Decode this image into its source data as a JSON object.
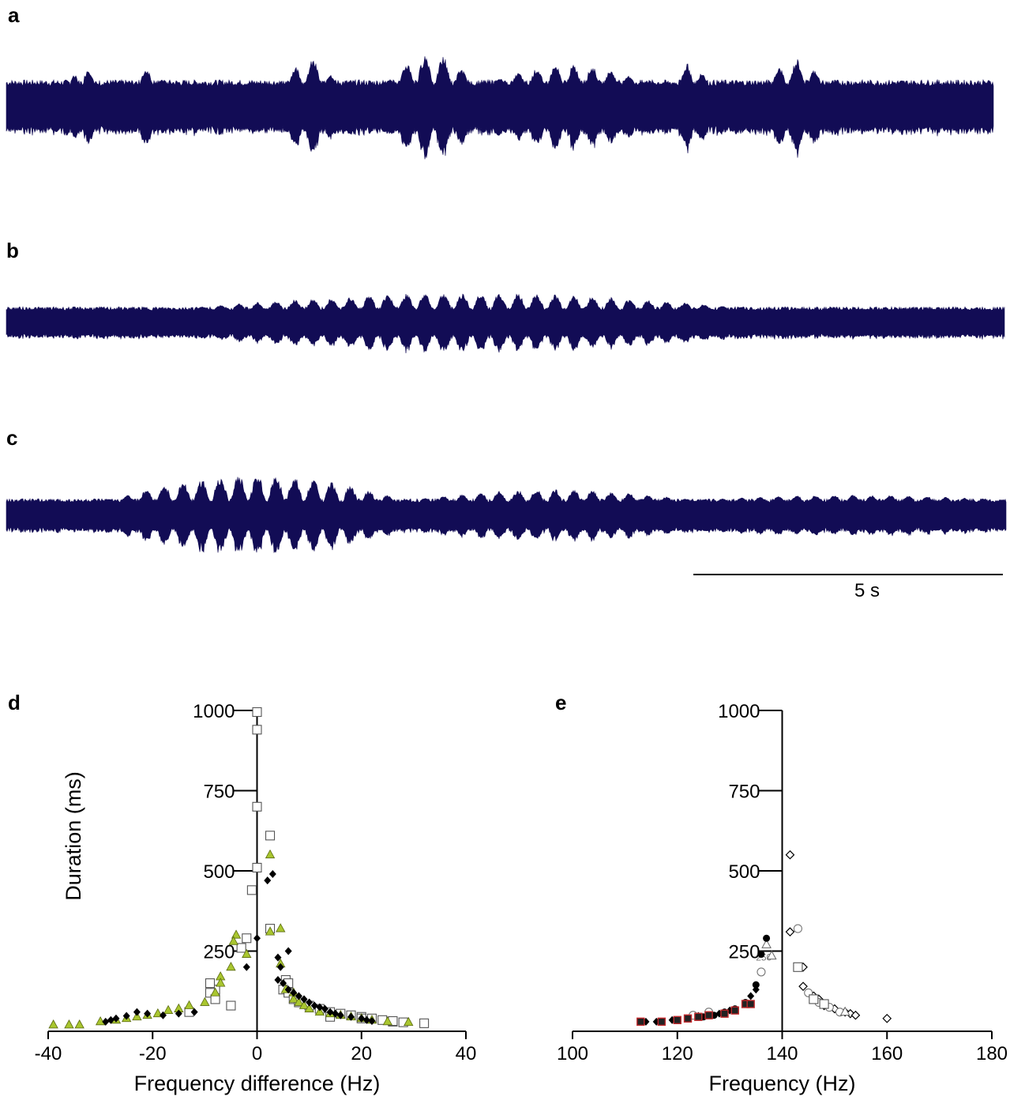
{
  "panel_labels": [
    "a",
    "b",
    "c",
    "d",
    "e"
  ],
  "colors": {
    "trace": "#120c55",
    "axis": "#000000",
    "green_triangle": "#a9c62f",
    "black": "#000000",
    "open_marker": "#555555",
    "red_edge": "#c0282b"
  },
  "scale_bar": {
    "label": "5 s",
    "seconds": 5
  },
  "chart_data": [
    {
      "id": "a",
      "type": "line",
      "description_kind": "waveform",
      "bursts": [
        {
          "start": 0.065,
          "end": 0.09,
          "amp": 1.7
        },
        {
          "start": 0.13,
          "end": 0.16,
          "amp": 1.5
        },
        {
          "start": 0.28,
          "end": 0.335,
          "amp": 1.8
        },
        {
          "start": 0.385,
          "end": 0.475,
          "amp": 2.0
        },
        {
          "start": 0.49,
          "end": 0.65,
          "amp": 1.6
        },
        {
          "start": 0.68,
          "end": 0.71,
          "amp": 1.8
        },
        {
          "start": 0.77,
          "end": 0.83,
          "amp": 1.8
        }
      ]
    },
    {
      "id": "b",
      "type": "line",
      "description_kind": "waveform",
      "bursts": [
        {
          "start": 0.18,
          "end": 0.745,
          "amp": 1.9
        }
      ]
    },
    {
      "id": "c",
      "type": "line",
      "description_kind": "waveform",
      "bursts": [
        {
          "start": 0.1,
          "end": 0.4,
          "amp": 2.4
        },
        {
          "start": 0.4,
          "end": 0.69,
          "amp": 1.6
        },
        {
          "start": 0.69,
          "end": 1.0,
          "amp": 1.3
        }
      ]
    },
    {
      "id": "d",
      "type": "scatter",
      "xlabel": "Frequency difference (Hz)",
      "ylabel": "Duration (ms)",
      "xlim": [
        -40,
        40
      ],
      "ylim": [
        0,
        1000
      ],
      "x_ticks": [
        -40,
        -20,
        0,
        20,
        40
      ],
      "y_ticks": [
        250,
        500,
        750,
        1000
      ],
      "series": [
        {
          "marker": "open-square",
          "points": [
            [
              0,
              995
            ],
            [
              0,
              940
            ],
            [
              0,
              700
            ],
            [
              2.5,
              610
            ],
            [
              0,
              510
            ],
            [
              -1,
              440
            ],
            [
              2.5,
              320
            ],
            [
              -2,
              290
            ],
            [
              -3,
              260
            ],
            [
              -5,
              80
            ],
            [
              -8,
              130
            ],
            [
              -9,
              150
            ],
            [
              -9,
              120
            ],
            [
              -8,
              100
            ],
            [
              -13,
              60
            ],
            [
              5.5,
              160
            ],
            [
              6,
              150
            ],
            [
              5,
              130
            ],
            [
              6,
              120
            ],
            [
              7,
              100
            ],
            [
              8,
              90
            ],
            [
              10,
              80
            ],
            [
              12,
              70
            ],
            [
              14,
              60
            ],
            [
              16,
              55
            ],
            [
              18,
              50
            ],
            [
              20,
              45
            ],
            [
              22,
              40
            ],
            [
              24,
              35
            ],
            [
              26,
              30
            ],
            [
              28,
              28
            ],
            [
              32,
              25
            ],
            [
              14,
              45
            ],
            [
              20,
              40
            ],
            [
              26,
              32
            ]
          ]
        },
        {
          "marker": "green-triangle",
          "points": [
            [
              2.5,
              550
            ],
            [
              2.5,
              310
            ],
            [
              4.5,
              320
            ],
            [
              -4,
              300
            ],
            [
              -4.5,
              280
            ],
            [
              -2,
              240
            ],
            [
              -5,
              200
            ],
            [
              -7,
              170
            ],
            [
              -7,
              150
            ],
            [
              -8,
              120
            ],
            [
              -10,
              90
            ],
            [
              -13,
              80
            ],
            [
              -15,
              70
            ],
            [
              -17,
              65
            ],
            [
              -19,
              55
            ],
            [
              -21,
              50
            ],
            [
              -23,
              45
            ],
            [
              -25,
              40
            ],
            [
              -27,
              35
            ],
            [
              -30,
              30
            ],
            [
              -34,
              20
            ],
            [
              -36,
              20
            ],
            [
              -39,
              20
            ],
            [
              4.5,
              210
            ],
            [
              5.5,
              130
            ],
            [
              7,
              120
            ],
            [
              7,
              100
            ],
            [
              8,
              90
            ],
            [
              9,
              80
            ],
            [
              10,
              70
            ],
            [
              12,
              60
            ],
            [
              14,
              55
            ],
            [
              16,
              50
            ],
            [
              18,
              45
            ],
            [
              20,
              40
            ],
            [
              22,
              35
            ],
            [
              25,
              30
            ],
            [
              29,
              28
            ]
          ]
        },
        {
          "marker": "black-diamond",
          "points": [
            [
              2,
              470
            ],
            [
              3,
              490
            ],
            [
              0,
              290
            ],
            [
              6,
              250
            ],
            [
              4,
              230
            ],
            [
              4.5,
              200
            ],
            [
              4,
              160
            ],
            [
              5,
              150
            ],
            [
              6,
              130
            ],
            [
              7,
              120
            ],
            [
              8,
              110
            ],
            [
              9,
              100
            ],
            [
              10,
              90
            ],
            [
              11,
              80
            ],
            [
              12,
              75
            ],
            [
              13,
              70
            ],
            [
              14,
              60
            ],
            [
              15,
              55
            ],
            [
              16,
              50
            ],
            [
              18,
              45
            ],
            [
              20,
              40
            ],
            [
              21,
              35
            ],
            [
              22,
              32
            ],
            [
              -2,
              200
            ],
            [
              -23,
              60
            ],
            [
              -21,
              55
            ],
            [
              -25,
              48
            ],
            [
              -27,
              40
            ],
            [
              -28,
              35
            ],
            [
              -29,
              30
            ],
            [
              -18,
              50
            ],
            [
              -15,
              55
            ],
            [
              -12,
              60
            ]
          ]
        }
      ]
    },
    {
      "id": "e",
      "type": "scatter",
      "xlabel": "Frequency (Hz)",
      "ylabel": "",
      "xlim": [
        100,
        180
      ],
      "ylim": [
        0,
        1000
      ],
      "x_ticks": [
        100,
        120,
        140,
        160,
        180
      ],
      "y_ticks": [
        250,
        500,
        750,
        1000
      ],
      "annotations": [
        {
          "text": "250",
          "x": 136.5,
          "y": 220
        }
      ],
      "series": [
        {
          "marker": "open-diamond",
          "points": [
            [
              141.5,
              550
            ],
            [
              141.5,
              310
            ],
            [
              144,
              200
            ],
            [
              144,
              140
            ],
            [
              146,
              110
            ],
            [
              147,
              100
            ],
            [
              148,
              80
            ],
            [
              150,
              70
            ],
            [
              152,
              60
            ],
            [
              153,
              55
            ],
            [
              154,
              50
            ],
            [
              160,
              40
            ]
          ]
        },
        {
          "marker": "open-circle",
          "points": [
            [
              143,
              320
            ],
            [
              136,
              185
            ],
            [
              145,
              120
            ],
            [
              147,
              90
            ],
            [
              149,
              75
            ],
            [
              151,
              60
            ],
            [
              126,
              60
            ],
            [
              123,
              50
            ]
          ]
        },
        {
          "marker": "open-square",
          "points": [
            [
              143,
              200
            ],
            [
              146,
              100
            ],
            [
              148,
              85
            ]
          ]
        },
        {
          "marker": "open-triangle",
          "points": [
            [
              137,
              270
            ],
            [
              138,
              235
            ],
            [
              152,
              60
            ]
          ]
        },
        {
          "marker": "black-circle",
          "points": [
            [
              137,
              290
            ],
            [
              136,
              240
            ],
            [
              135,
              145
            ],
            [
              133,
              90
            ],
            [
              131,
              70
            ],
            [
              129,
              60
            ],
            [
              127,
              50
            ],
            [
              125,
              45
            ],
            [
              122,
              40
            ],
            [
              120,
              35
            ],
            [
              117,
              30
            ]
          ]
        },
        {
          "marker": "black-diamond",
          "points": [
            [
              135,
              130
            ],
            [
              134,
              110
            ],
            [
              130,
              65
            ],
            [
              128,
              55
            ],
            [
              124,
              48
            ],
            [
              119,
              35
            ],
            [
              114,
              30
            ],
            [
              116,
              30
            ]
          ]
        },
        {
          "marker": "red-square",
          "points": [
            [
              113,
              30
            ],
            [
              117,
              30
            ],
            [
              120,
              35
            ],
            [
              122,
              40
            ],
            [
              124,
              45
            ],
            [
              126,
              50
            ],
            [
              129,
              55
            ],
            [
              131,
              65
            ],
            [
              133,
              85
            ],
            [
              134,
              85
            ]
          ]
        }
      ]
    }
  ]
}
